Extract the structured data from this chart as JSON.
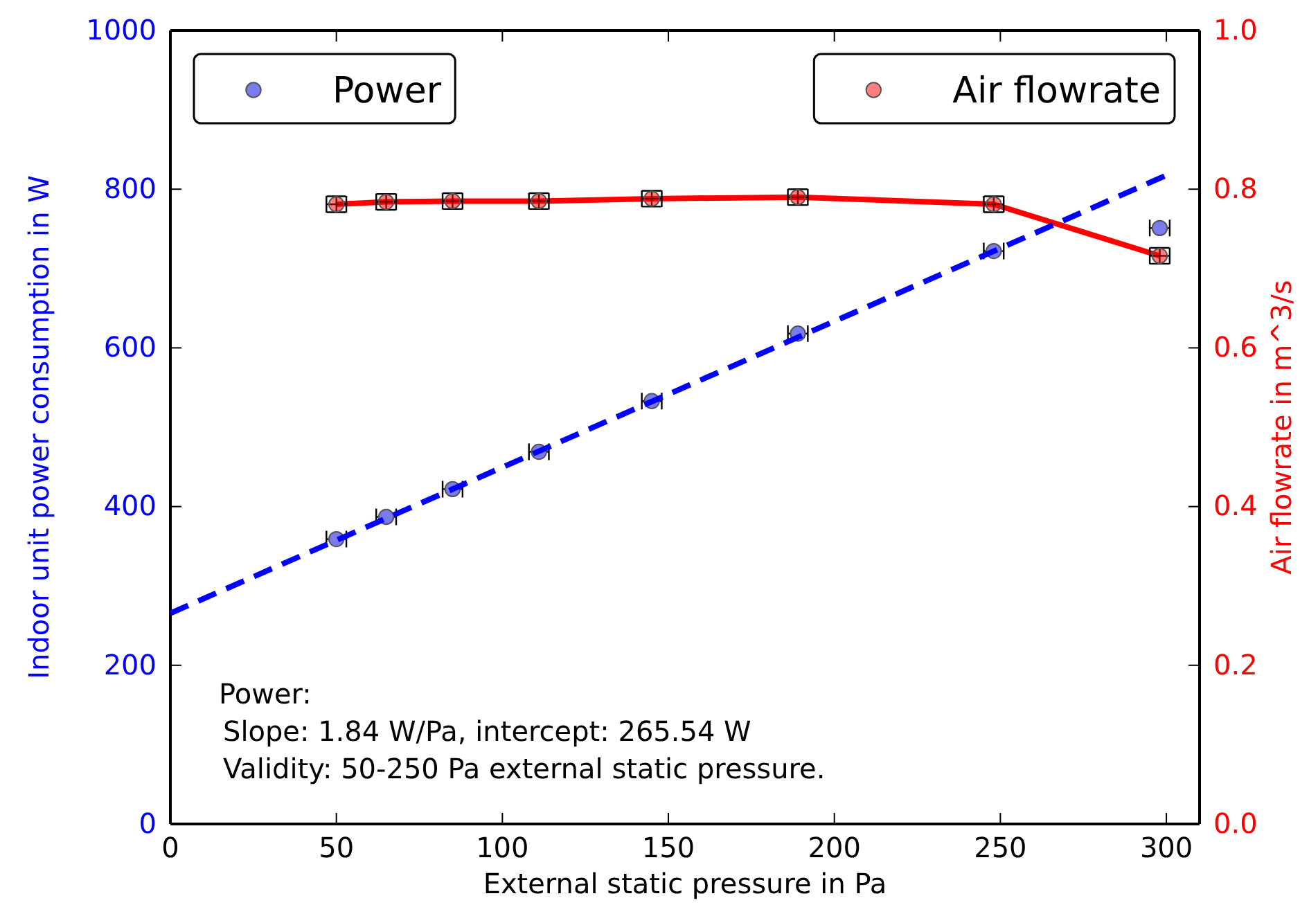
{
  "chart_data": {
    "type": "scatter",
    "xlabel": "External static pressure in Pa",
    "ylabel": "Indoor unit power consumption in W",
    "y2label": "Air flowrate in m^3/s",
    "xlim": [
      0,
      310
    ],
    "xticks": [
      0,
      50,
      100,
      150,
      200,
      250,
      300
    ],
    "ylim": [
      0,
      1000
    ],
    "yticks": [
      0,
      200,
      400,
      600,
      800,
      1000
    ],
    "y2lim": [
      0,
      1
    ],
    "y2ticks": [
      {
        "value": 0,
        "label": "0.0"
      },
      0.2,
      0.4,
      0.6,
      0.8,
      {
        "value": 1,
        "label": "1.0"
      }
    ],
    "marker": "circle",
    "legend": "top",
    "grid": false,
    "annotations": [
      "Power:",
      "Slope: 1.84 W/Pa, intercept: 265.54 W",
      "Validity: 50-250 Pa external static pressure."
    ],
    "series": [
      {
        "name": "Power",
        "color": "#7b7bf0",
        "x": [
          50,
          65,
          85,
          111,
          145,
          189,
          248,
          298
        ],
        "values": [
          359,
          387,
          422,
          469,
          533,
          618,
          722,
          751
        ],
        "xerrors": [
          3,
          3,
          3,
          3,
          3,
          3,
          3,
          3
        ]
      },
      {
        "name": "Air flowrate",
        "type": "line",
        "axis": "y2",
        "color": "#ff0000",
        "line_style": "solid",
        "x": [
          50,
          65,
          85,
          111,
          145,
          189,
          248,
          298
        ],
        "values": [
          0.781,
          0.784,
          0.785,
          0.785,
          0.788,
          0.79,
          0.781,
          0.716
        ],
        "xerrors": [
          3,
          3,
          3,
          3,
          3,
          3,
          3,
          3
        ],
        "errors": [
          0.01,
          0.01,
          0.01,
          0.01,
          0.01,
          0.01,
          0.01,
          0.01
        ]
      },
      {
        "type": "line",
        "color": "#0000ff",
        "line_style": "dashed",
        "marker": "none",
        "x": [
          0,
          300
        ],
        "values": [
          265.54,
          817.54
        ]
      }
    ]
  }
}
